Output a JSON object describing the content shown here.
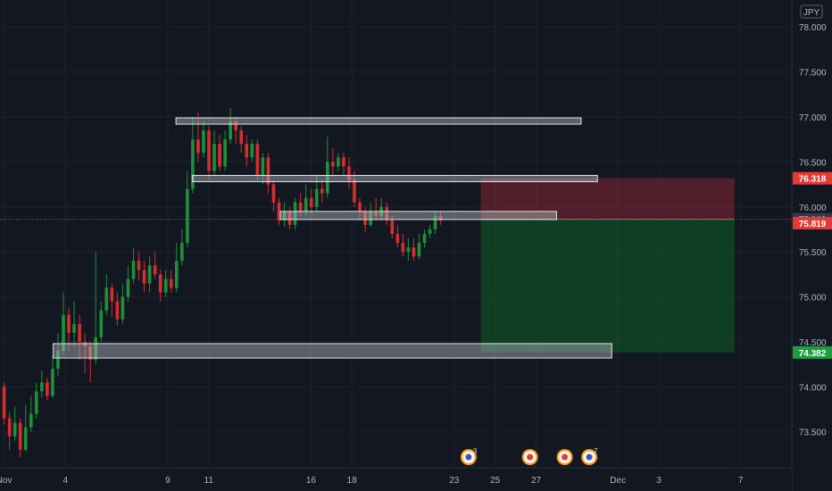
{
  "chart_data": {
    "type": "candlestick",
    "currency": "JPY",
    "y_ticks": [
      73.5,
      74.0,
      74.5,
      75.0,
      75.5,
      76.0,
      76.5,
      77.0,
      77.5,
      78.0
    ],
    "y_tick_labels": [
      "73.500",
      "74.000",
      "74.500",
      "75.000",
      "75.500",
      "76.000",
      "76.500",
      "77.000",
      "77.500",
      "78.000"
    ],
    "ylim": [
      73.1,
      78.3
    ],
    "x_ticks": [
      {
        "label": "Nov",
        "day": 0
      },
      {
        "label": "4",
        "day": 3
      },
      {
        "label": "9",
        "day": 8
      },
      {
        "label": "11",
        "day": 10
      },
      {
        "label": "16",
        "day": 15
      },
      {
        "label": "18",
        "day": 17
      },
      {
        "label": "23",
        "day": 22
      },
      {
        "label": "25",
        "day": 24
      },
      {
        "label": "27",
        "day": 26
      },
      {
        "label": "Dec",
        "day": 30
      },
      {
        "label": "3",
        "day": 32
      },
      {
        "label": "7",
        "day": 36
      }
    ],
    "xlim": [
      -0.2,
      38.5
    ],
    "price_tags": [
      {
        "label": "76.318",
        "value": 76.318,
        "color": "#e53935"
      },
      {
        "label": "75.862",
        "value": 75.862,
        "color": "#363a45"
      },
      {
        "label": "75.819",
        "value": 75.819,
        "color": "#e53935"
      },
      {
        "label": "74.382",
        "value": 74.382,
        "color": "#1e9e3f"
      }
    ],
    "last_price": 75.862,
    "zones": [
      {
        "y1": 76.92,
        "y2": 76.99,
        "x1": 8.4,
        "x2": 28.2
      },
      {
        "y1": 76.28,
        "y2": 76.35,
        "x1": 9.2,
        "x2": 29.0
      },
      {
        "y1": 75.86,
        "y2": 75.95,
        "x1": 13.5,
        "x2": 27.0
      },
      {
        "y1": 74.32,
        "y2": 74.48,
        "x1": 2.4,
        "x2": 29.7
      }
    ],
    "position": {
      "entry": 75.862,
      "stop": 76.318,
      "target": 74.382,
      "x1": 23.3,
      "x2": 35.7
    },
    "events": [
      {
        "day": 22.7,
        "count": "3"
      },
      {
        "day": 25.7,
        "count": ""
      },
      {
        "day": 27.4,
        "count": ""
      },
      {
        "day": 28.6,
        "count": "7"
      }
    ],
    "candles": [
      [
        74.0,
        73.65,
        74.05,
        73.58
      ],
      [
        73.65,
        73.45,
        73.72,
        73.3
      ],
      [
        73.45,
        73.6,
        73.78,
        73.4
      ],
      [
        73.6,
        73.3,
        73.65,
        73.22
      ],
      [
        73.3,
        73.55,
        73.8,
        73.28
      ],
      [
        73.55,
        73.7,
        73.9,
        73.5
      ],
      [
        73.7,
        73.95,
        74.05,
        73.65
      ],
      [
        73.95,
        74.05,
        74.18,
        73.88
      ],
      [
        74.05,
        73.9,
        74.1,
        73.85
      ],
      [
        73.9,
        74.2,
        74.35,
        73.88
      ],
      [
        74.2,
        74.4,
        74.6,
        74.12
      ],
      [
        74.4,
        74.8,
        75.05,
        74.35
      ],
      [
        74.8,
        74.6,
        74.88,
        74.4
      ],
      [
        74.6,
        74.7,
        74.95,
        74.45
      ],
      [
        74.7,
        74.5,
        74.8,
        74.3
      ],
      [
        74.5,
        74.45,
        74.6,
        74.15
      ],
      [
        74.45,
        74.3,
        74.5,
        74.05
      ],
      [
        74.3,
        74.55,
        75.5,
        74.25
      ],
      [
        74.55,
        74.85,
        74.95,
        74.5
      ],
      [
        74.85,
        75.1,
        75.25,
        74.8
      ],
      [
        75.1,
        74.95,
        75.15,
        74.78
      ],
      [
        74.95,
        74.75,
        75.05,
        74.68
      ],
      [
        74.75,
        75.0,
        75.15,
        74.7
      ],
      [
        75.0,
        75.2,
        75.35,
        74.95
      ],
      [
        75.2,
        75.4,
        75.55,
        75.15
      ],
      [
        75.4,
        75.3,
        75.5,
        75.18
      ],
      [
        75.3,
        75.15,
        75.4,
        75.05
      ],
      [
        75.15,
        75.35,
        75.45,
        75.05
      ],
      [
        75.35,
        75.25,
        75.5,
        75.2
      ],
      [
        75.25,
        75.05,
        75.3,
        74.95
      ],
      [
        75.05,
        75.2,
        75.3,
        75.0
      ],
      [
        75.2,
        75.1,
        75.3,
        75.05
      ],
      [
        75.1,
        75.4,
        75.6,
        75.05
      ],
      [
        75.4,
        75.6,
        75.75,
        75.35
      ],
      [
        75.6,
        76.2,
        76.4,
        75.55
      ],
      [
        76.2,
        76.75,
        77.0,
        76.15
      ],
      [
        76.75,
        76.6,
        77.05,
        76.5
      ],
      [
        76.6,
        76.85,
        76.95,
        76.55
      ],
      [
        76.85,
        76.4,
        76.9,
        76.3
      ],
      [
        76.4,
        76.7,
        76.85,
        76.35
      ],
      [
        76.7,
        76.45,
        76.8,
        76.4
      ],
      [
        76.45,
        76.75,
        76.85,
        76.4
      ],
      [
        76.75,
        76.95,
        77.1,
        76.7
      ],
      [
        76.95,
        76.85,
        77.0,
        76.7
      ],
      [
        76.85,
        76.7,
        76.9,
        76.6
      ],
      [
        76.7,
        76.55,
        76.8,
        76.45
      ],
      [
        76.55,
        76.7,
        76.75,
        76.5
      ],
      [
        76.7,
        76.35,
        76.75,
        76.3
      ],
      [
        76.35,
        76.55,
        76.6,
        76.25
      ],
      [
        76.55,
        76.25,
        76.6,
        76.15
      ],
      [
        76.25,
        76.05,
        76.3,
        75.95
      ],
      [
        76.05,
        75.85,
        76.1,
        75.8
      ],
      [
        75.85,
        75.95,
        76.05,
        75.78
      ],
      [
        75.95,
        75.8,
        76.0,
        75.75
      ],
      [
        75.8,
        76.05,
        76.1,
        75.75
      ],
      [
        76.05,
        75.95,
        76.15,
        75.9
      ],
      [
        75.95,
        76.1,
        76.25,
        75.9
      ],
      [
        76.1,
        76.0,
        76.2,
        75.92
      ],
      [
        76.0,
        76.2,
        76.35,
        75.95
      ],
      [
        76.2,
        76.15,
        76.3,
        76.05
      ],
      [
        76.15,
        76.5,
        76.78,
        76.1
      ],
      [
        76.5,
        76.45,
        76.65,
        76.35
      ],
      [
        76.45,
        76.55,
        76.6,
        76.4
      ],
      [
        76.55,
        76.45,
        76.6,
        76.35
      ],
      [
        76.45,
        76.3,
        76.55,
        76.2
      ],
      [
        76.3,
        76.05,
        76.4,
        76.0
      ],
      [
        76.05,
        75.95,
        76.1,
        75.85
      ],
      [
        75.95,
        75.8,
        76.0,
        75.72
      ],
      [
        75.8,
        75.95,
        76.05,
        75.78
      ],
      [
        75.95,
        75.9,
        76.1,
        75.85
      ],
      [
        75.9,
        76.0,
        76.1,
        75.85
      ],
      [
        76.0,
        75.85,
        76.05,
        75.8
      ],
      [
        75.85,
        75.7,
        75.9,
        75.65
      ],
      [
        75.7,
        75.6,
        75.8,
        75.55
      ],
      [
        75.6,
        75.5,
        75.7,
        75.45
      ],
      [
        75.5,
        75.55,
        75.65,
        75.4
      ],
      [
        75.55,
        75.45,
        75.65,
        75.4
      ],
      [
        75.45,
        75.6,
        75.7,
        75.42
      ],
      [
        75.6,
        75.7,
        75.75,
        75.55
      ],
      [
        75.7,
        75.75,
        75.8,
        75.65
      ],
      [
        75.75,
        75.9,
        75.95,
        75.7
      ],
      [
        75.9,
        75.85,
        75.95,
        75.8
      ]
    ]
  }
}
